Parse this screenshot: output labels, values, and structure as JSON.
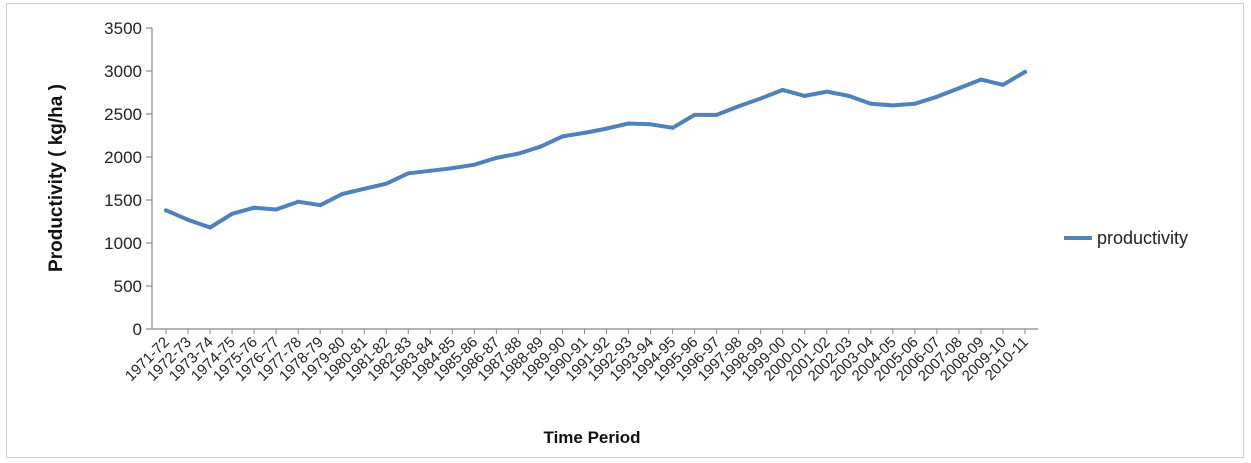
{
  "chart_data": {
    "type": "line",
    "title": "",
    "xlabel": "Time Period",
    "ylabel": "Productivity ( kg/ha )",
    "ylim": [
      0,
      3500
    ],
    "yticks": [
      0,
      500,
      1000,
      1500,
      2000,
      2500,
      3000,
      3500
    ],
    "legend_position": "right",
    "grid": false,
    "line_color": "#4f81bd",
    "categories": [
      "1971-72",
      "1972-73",
      "1973-74",
      "1974-75",
      "1975-76",
      "1976-77",
      "1977-78",
      "1978-79",
      "1979-80",
      "1980-81",
      "1981-82",
      "1982-83",
      "1983-84",
      "1984-85",
      "1985-86",
      "1986-87",
      "1987-88",
      "1988-89",
      "1989-90",
      "1990-91",
      "1991-92",
      "1992-93",
      "1993-94",
      "1994-95",
      "1995-96",
      "1996-97",
      "1997-98",
      "1998-99",
      "1999-00",
      "2000-01",
      "2001-02",
      "2002-03",
      "2003-04",
      "2004-05",
      "2005-06",
      "2006-07",
      "2007-08",
      "2008-09",
      "2009-10",
      "2010-11"
    ],
    "series": [
      {
        "name": "productivity",
        "values": [
          1380,
          1270,
          1180,
          1340,
          1410,
          1390,
          1480,
          1440,
          1570,
          1630,
          1690,
          1810,
          1840,
          1870,
          1910,
          1990,
          2040,
          2120,
          2240,
          2280,
          2330,
          2390,
          2380,
          2340,
          2490,
          2490,
          2590,
          2680,
          2780,
          2710,
          2760,
          2710,
          2620,
          2600,
          2620,
          2700,
          2800,
          2900,
          2840,
          2990
        ]
      }
    ]
  }
}
